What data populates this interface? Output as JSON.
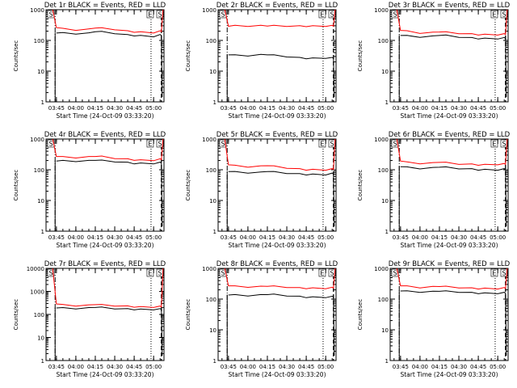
{
  "colors": {
    "events": "#000000",
    "lld": "#ff0000",
    "background": "#ffffff"
  },
  "chart_data": [
    {
      "type": "line",
      "title": "Det 1r BLACK = Events, RED = LLD",
      "xlabel": "Start Time (24-Oct-09 03:33:20)",
      "ylabel": "Counts/sec",
      "yscale": "log",
      "ylim": [
        1,
        1000
      ],
      "yticks": [
        "1",
        "10",
        "100",
        "1000"
      ],
      "xticks": [
        "03:45",
        "04:00",
        "04:15",
        "04:30",
        "04:45",
        "05:00"
      ],
      "markers": [
        "S",
        "E",
        "S"
      ],
      "x": [
        "03:45",
        "03:50",
        "04:00",
        "04:10",
        "04:15",
        "04:20",
        "04:30",
        "04:40",
        "04:45",
        "04:50",
        "05:00",
        "05:05",
        "05:06"
      ],
      "series": [
        {
          "name": "BLACK = Events",
          "values": [
            180,
            175,
            165,
            170,
            200,
            190,
            170,
            150,
            145,
            140,
            135,
            150,
            150
          ]
        },
        {
          "name": "RED = LLD",
          "values": [
            270,
            240,
            220,
            230,
            260,
            250,
            230,
            200,
            190,
            185,
            180,
            200,
            200
          ]
        }
      ]
    },
    {
      "type": "line",
      "title": "Det 2r BLACK = Events, RED = LLD",
      "xlabel": "Start Time (24-Oct-09 03:33:20)",
      "ylabel": "Counts/sec",
      "yscale": "log",
      "ylim": [
        1,
        1000
      ],
      "yticks": [
        "1",
        "10",
        "100",
        "1000"
      ],
      "xticks": [
        "03:45",
        "04:00",
        "04:15",
        "04:30",
        "04:45",
        "05:00"
      ],
      "markers": [
        "S",
        "E",
        "S"
      ],
      "x": [
        "03:45",
        "03:50",
        "04:00",
        "04:10",
        "04:15",
        "04:20",
        "04:30",
        "04:40",
        "04:45",
        "04:50",
        "05:00",
        "05:05",
        "05:06"
      ],
      "series": [
        {
          "name": "BLACK = Events",
          "values": [
            35,
            33,
            32,
            34,
            35,
            33,
            30,
            27,
            26,
            26,
            27,
            27,
            27
          ]
        },
        {
          "name": "RED = LLD",
          "values": [
            300,
            300,
            295,
            300,
            305,
            300,
            295,
            290,
            290,
            290,
            295,
            300,
            300
          ]
        }
      ]
    },
    {
      "type": "line",
      "title": "Det 3r BLACK = Events, RED = LLD",
      "xlabel": "Start Time (24-Oct-09 03:33:20)",
      "ylabel": "Counts/sec",
      "yscale": "log",
      "ylim": [
        1,
        1000
      ],
      "yticks": [
        "1",
        "10",
        "100",
        "1000"
      ],
      "xticks": [
        "03:45",
        "04:00",
        "04:15",
        "04:30",
        "04:45",
        "05:00"
      ],
      "markers": [
        "S",
        "E",
        "S"
      ],
      "x": [
        "03:45",
        "03:50",
        "04:00",
        "04:10",
        "04:15",
        "04:20",
        "04:30",
        "04:40",
        "04:45",
        "04:50",
        "05:00",
        "05:05",
        "05:06"
      ],
      "series": [
        {
          "name": "BLACK = Events",
          "values": [
            150,
            140,
            130,
            135,
            150,
            145,
            130,
            120,
            115,
            115,
            115,
            120,
            120
          ]
        },
        {
          "name": "RED = LLD",
          "values": [
            220,
            200,
            175,
            180,
            195,
            185,
            170,
            160,
            155,
            155,
            155,
            160,
            160
          ]
        }
      ]
    },
    {
      "type": "line",
      "title": "Det 4r BLACK = Events, RED = LLD",
      "xlabel": "Start Time (24-Oct-09 03:33:20)",
      "ylabel": "Counts/sec",
      "yscale": "log",
      "ylim": [
        1,
        1000
      ],
      "yticks": [
        "1",
        "10",
        "100",
        "1000"
      ],
      "xticks": [
        "03:45",
        "04:00",
        "04:15",
        "04:30",
        "04:45",
        "05:00"
      ],
      "markers": [
        "S",
        "E",
        "S"
      ],
      "x": [
        "03:45",
        "03:50",
        "04:00",
        "04:10",
        "04:15",
        "04:20",
        "04:30",
        "04:40",
        "04:45",
        "04:50",
        "05:00",
        "05:05",
        "05:06"
      ],
      "series": [
        {
          "name": "BLACK = Events",
          "values": [
            200,
            195,
            190,
            195,
            210,
            200,
            185,
            170,
            160,
            160,
            160,
            170,
            170
          ]
        },
        {
          "name": "RED = LLD",
          "values": [
            280,
            260,
            250,
            260,
            280,
            270,
            240,
            220,
            210,
            205,
            205,
            220,
            220
          ]
        }
      ]
    },
    {
      "type": "line",
      "title": "Det 5r BLACK = Events, RED = LLD",
      "xlabel": "Start Time (24-Oct-09 03:33:20)",
      "ylabel": "Counts/sec",
      "yscale": "log",
      "ylim": [
        1,
        1000
      ],
      "yticks": [
        "1",
        "10",
        "100",
        "1000"
      ],
      "xticks": [
        "03:45",
        "04:00",
        "04:15",
        "04:30",
        "04:45",
        "05:00"
      ],
      "markers": [
        "S",
        "E",
        "S"
      ],
      "x": [
        "03:45",
        "03:50",
        "04:00",
        "04:10",
        "04:15",
        "04:20",
        "04:30",
        "04:40",
        "04:45",
        "04:50",
        "05:00",
        "05:05",
        "05:06"
      ],
      "series": [
        {
          "name": "BLACK = Events",
          "values": [
            90,
            85,
            80,
            82,
            90,
            85,
            78,
            72,
            70,
            70,
            70,
            75,
            75
          ]
        },
        {
          "name": "RED = LLD",
          "values": [
            150,
            135,
            125,
            130,
            140,
            130,
            115,
            105,
            100,
            100,
            100,
            105,
            105
          ]
        }
      ]
    },
    {
      "type": "line",
      "title": "Det 6r BLACK = Events, RED = LLD",
      "xlabel": "Start Time (24-Oct-09 03:33:20)",
      "ylabel": "Counts/sec",
      "yscale": "log",
      "ylim": [
        1,
        1000
      ],
      "yticks": [
        "1",
        "10",
        "100",
        "1000"
      ],
      "xticks": [
        "03:45",
        "04:00",
        "04:15",
        "04:30",
        "04:45",
        "05:00"
      ],
      "markers": [
        "S",
        "E",
        "S"
      ],
      "x": [
        "03:45",
        "03:50",
        "04:00",
        "04:10",
        "04:15",
        "04:20",
        "04:30",
        "04:40",
        "04:45",
        "04:50",
        "05:00",
        "05:05",
        "05:06"
      ],
      "series": [
        {
          "name": "BLACK = Events",
          "values": [
            130,
            120,
            110,
            115,
            125,
            120,
            110,
            105,
            100,
            100,
            100,
            105,
            105
          ]
        },
        {
          "name": "RED = LLD",
          "values": [
            200,
            175,
            160,
            165,
            180,
            170,
            155,
            150,
            145,
            145,
            150,
            155,
            155
          ]
        }
      ]
    },
    {
      "type": "line",
      "title": "Det 7r BLACK = Events, RED = LLD",
      "xlabel": "Start Time (24-Oct-09 03:33:20)",
      "ylabel": "Counts/sec",
      "yscale": "log",
      "ylim": [
        1,
        10000
      ],
      "yticks": [
        "1",
        "10",
        "100",
        "1000",
        "10000"
      ],
      "xticks": [
        "03:45",
        "04:00",
        "04:15",
        "04:30",
        "04:45",
        "05:00"
      ],
      "markers": [
        "S",
        "E",
        "S"
      ],
      "x": [
        "03:45",
        "03:50",
        "04:00",
        "04:10",
        "04:15",
        "04:20",
        "04:30",
        "04:40",
        "04:45",
        "04:50",
        "05:00",
        "05:05",
        "05:06"
      ],
      "series": [
        {
          "name": "BLACK = Events",
          "values": [
            200,
            190,
            180,
            190,
            210,
            200,
            180,
            170,
            165,
            165,
            165,
            170,
            170
          ]
        },
        {
          "name": "RED = LLD",
          "values": [
            300,
            260,
            240,
            250,
            280,
            260,
            240,
            225,
            215,
            210,
            210,
            220,
            220
          ]
        }
      ]
    },
    {
      "type": "line",
      "title": "Det 8r BLACK = Events, RED = LLD",
      "xlabel": "Start Time (24-Oct-09 03:33:20)",
      "ylabel": "Counts/sec",
      "yscale": "log",
      "ylim": [
        1,
        1000
      ],
      "yticks": [
        "1",
        "10",
        "100",
        "1000"
      ],
      "xticks": [
        "03:45",
        "04:00",
        "04:15",
        "04:30",
        "04:45",
        "05:00"
      ],
      "markers": [
        "S",
        "E",
        "S"
      ],
      "x": [
        "03:45",
        "03:50",
        "04:00",
        "04:10",
        "04:15",
        "04:20",
        "04:30",
        "04:40",
        "04:45",
        "04:50",
        "05:00",
        "05:05",
        "05:06"
      ],
      "series": [
        {
          "name": "BLACK = Events",
          "values": [
            140,
            135,
            130,
            135,
            145,
            140,
            130,
            120,
            115,
            115,
            115,
            120,
            120
          ]
        },
        {
          "name": "RED = LLD",
          "values": [
            280,
            260,
            250,
            255,
            270,
            260,
            245,
            230,
            225,
            225,
            225,
            235,
            235
          ]
        }
      ]
    },
    {
      "type": "line",
      "title": "Det 9r BLACK = Events, RED = LLD",
      "xlabel": "Start Time (24-Oct-09 03:33:20)",
      "ylabel": "Counts/sec",
      "yscale": "log",
      "ylim": [
        1,
        1000
      ],
      "yticks": [
        "1",
        "10",
        "100",
        "1000"
      ],
      "xticks": [
        "03:45",
        "04:00",
        "04:15",
        "04:30",
        "04:45",
        "05:00"
      ],
      "markers": [
        "S",
        "E",
        "S"
      ],
      "x": [
        "03:45",
        "03:50",
        "04:00",
        "04:10",
        "04:15",
        "04:20",
        "04:30",
        "04:40",
        "04:45",
        "04:50",
        "05:00",
        "05:05",
        "05:06"
      ],
      "series": [
        {
          "name": "BLACK = Events",
          "values": [
            190,
            180,
            170,
            175,
            185,
            180,
            170,
            160,
            155,
            155,
            155,
            160,
            160
          ]
        },
        {
          "name": "RED = LLD",
          "values": [
            280,
            260,
            240,
            250,
            265,
            255,
            240,
            225,
            220,
            220,
            220,
            230,
            230
          ]
        }
      ]
    }
  ]
}
